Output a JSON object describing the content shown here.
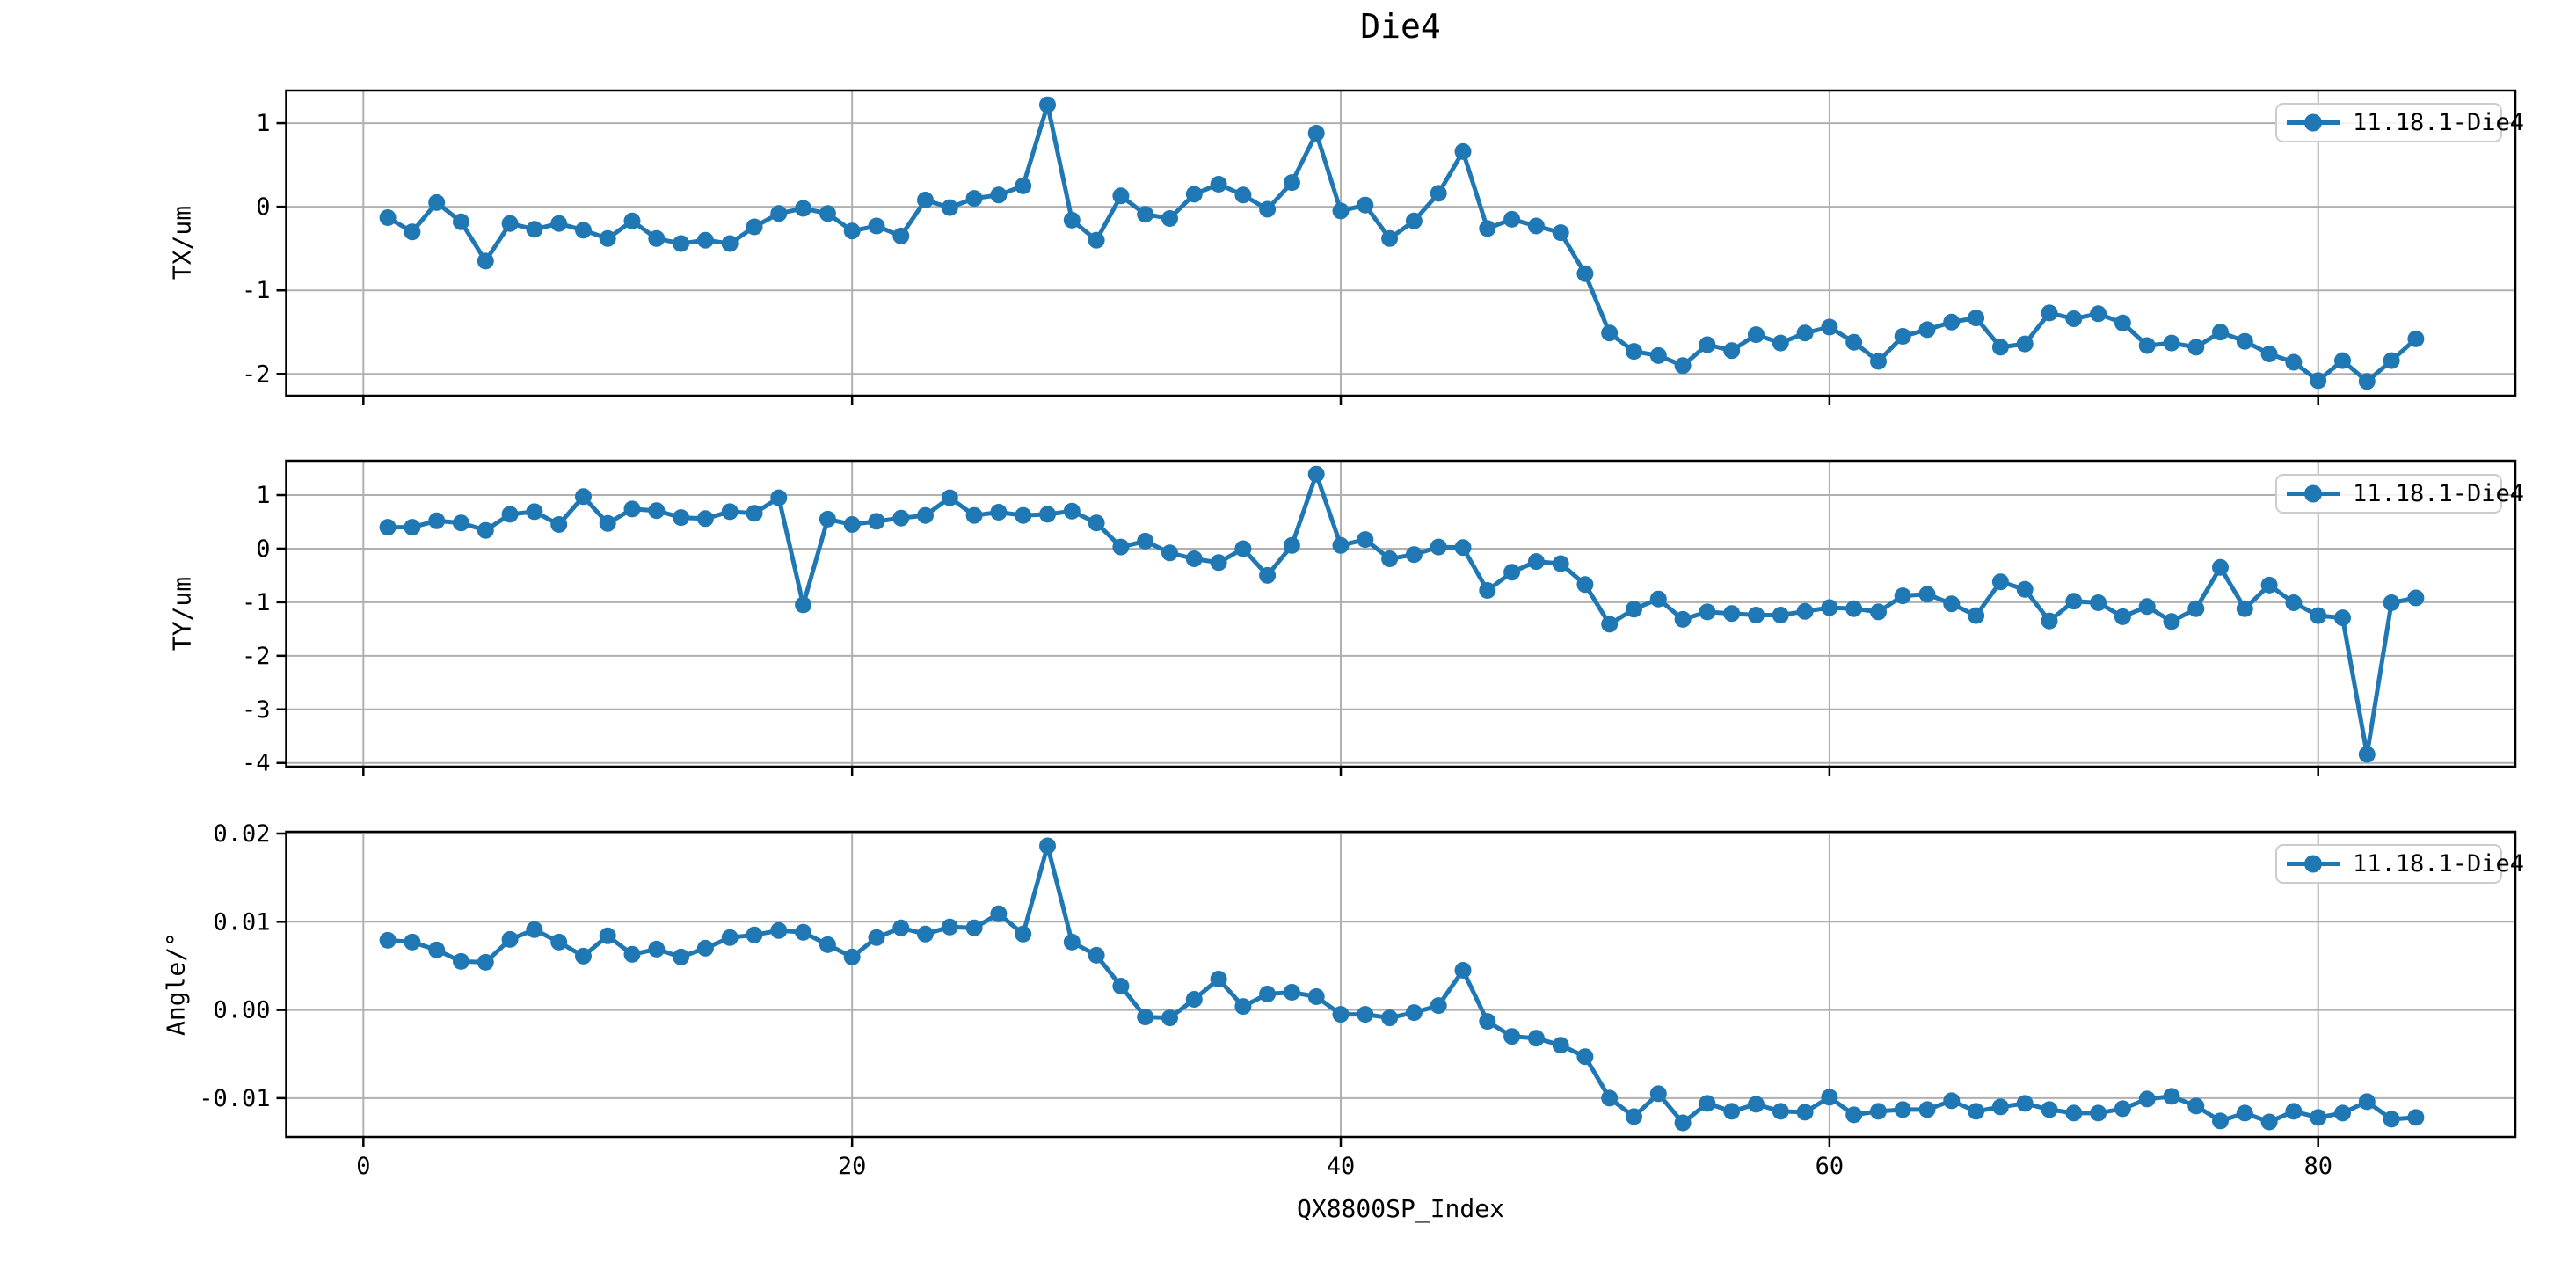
{
  "figure": {
    "title": "Die4",
    "xlabel": "QX8800SP_Index",
    "series_label": "11.18.1-Die4",
    "line_color": "#1f77b4",
    "grid_color": "#b0b0b0",
    "spine_color": "#000000",
    "background": "#ffffff",
    "legend_position": "upper right",
    "grid": "on"
  },
  "chart_data": [
    {
      "type": "line",
      "id": "tx",
      "title": "Die4",
      "ylabel": "TX/um",
      "legend": [
        "11.18.1-Die4"
      ],
      "marker": "circle",
      "grid": true,
      "legend_position": "upper right",
      "xlim": [
        -3.16,
        88.07
      ],
      "ylim": [
        -2.26,
        1.39
      ],
      "xticks": [
        0,
        20,
        40,
        60,
        80
      ],
      "xtick_labels": [
        "0",
        "20",
        "40",
        "60",
        "80"
      ],
      "show_xtick_labels": false,
      "yticks": [
        1,
        0,
        -1,
        -2
      ],
      "ytick_labels": [
        "1",
        "0",
        "-1",
        "-2"
      ],
      "x": [
        1,
        2,
        3,
        4,
        5,
        6,
        7,
        8,
        9,
        10,
        11,
        12,
        13,
        14,
        15,
        16,
        17,
        18,
        19,
        20,
        21,
        22,
        23,
        24,
        25,
        26,
        27,
        28,
        29,
        30,
        31,
        32,
        33,
        34,
        35,
        36,
        37,
        38,
        39,
        40,
        41,
        42,
        43,
        44,
        45,
        46,
        47,
        48,
        49,
        50,
        51,
        52,
        53,
        54,
        55,
        56,
        57,
        58,
        59,
        60,
        61,
        62,
        63,
        64,
        65,
        66,
        67,
        68,
        69,
        70,
        71,
        72,
        73,
        74,
        75,
        76,
        77,
        78,
        79,
        80,
        81,
        82,
        83,
        84
      ],
      "values": [
        -0.13,
        -0.3,
        0.05,
        -0.18,
        -0.65,
        -0.2,
        -0.27,
        -0.2,
        -0.28,
        -0.38,
        -0.17,
        -0.38,
        -0.44,
        -0.4,
        -0.44,
        -0.24,
        -0.08,
        -0.02,
        -0.08,
        -0.29,
        -0.23,
        -0.35,
        0.08,
        -0.01,
        0.1,
        0.14,
        0.25,
        1.22,
        -0.16,
        -0.4,
        0.13,
        -0.09,
        -0.14,
        0.15,
        0.27,
        0.14,
        -0.03,
        0.29,
        0.88,
        -0.05,
        0.02,
        -0.38,
        -0.17,
        0.16,
        0.66,
        -0.26,
        -0.15,
        -0.23,
        -0.31,
        -0.8,
        -1.51,
        -1.73,
        -1.78,
        -1.9,
        -1.65,
        -1.72,
        -1.53,
        -1.63,
        -1.51,
        -1.44,
        -1.62,
        -1.85,
        -1.55,
        -1.47,
        -1.38,
        -1.33,
        -1.68,
        -1.64,
        -1.27,
        -1.34,
        -1.28,
        -1.39,
        -1.66,
        -1.63,
        -1.68,
        -1.5,
        -1.61,
        -1.76,
        -1.86,
        -2.08,
        -1.84,
        -2.09,
        -1.84,
        -1.58
      ]
    },
    {
      "type": "line",
      "id": "ty",
      "ylabel": "TY/um",
      "legend": [
        "11.18.1-Die4"
      ],
      "marker": "circle",
      "grid": true,
      "legend_position": "upper right",
      "xlim": [
        -3.16,
        88.07
      ],
      "ylim": [
        -4.07,
        1.64
      ],
      "xticks": [
        0,
        20,
        40,
        60,
        80
      ],
      "xtick_labels": [
        "0",
        "20",
        "40",
        "60",
        "80"
      ],
      "show_xtick_labels": false,
      "yticks": [
        1,
        0,
        -1,
        -2,
        -3,
        -4
      ],
      "ytick_labels": [
        "1",
        "0",
        "-1",
        "-2",
        "-3",
        "-4"
      ],
      "x": [
        1,
        2,
        3,
        4,
        5,
        6,
        7,
        8,
        9,
        10,
        11,
        12,
        13,
        14,
        15,
        16,
        17,
        18,
        19,
        20,
        21,
        22,
        23,
        24,
        25,
        26,
        27,
        28,
        29,
        30,
        31,
        32,
        33,
        34,
        35,
        36,
        37,
        38,
        39,
        40,
        41,
        42,
        43,
        44,
        45,
        46,
        47,
        48,
        49,
        50,
        51,
        52,
        53,
        54,
        55,
        56,
        57,
        58,
        59,
        60,
        61,
        62,
        63,
        64,
        65,
        66,
        67,
        68,
        69,
        70,
        71,
        72,
        73,
        74,
        75,
        76,
        77,
        78,
        79,
        80,
        81,
        82,
        83,
        84
      ],
      "values": [
        0.4,
        0.4,
        0.52,
        0.48,
        0.34,
        0.64,
        0.69,
        0.45,
        0.97,
        0.47,
        0.74,
        0.71,
        0.58,
        0.56,
        0.69,
        0.66,
        0.95,
        -1.05,
        0.55,
        0.45,
        0.51,
        0.57,
        0.62,
        0.95,
        0.62,
        0.68,
        0.62,
        0.64,
        0.7,
        0.48,
        0.03,
        0.14,
        -0.08,
        -0.19,
        -0.26,
        0.0,
        -0.5,
        0.06,
        1.39,
        0.06,
        0.17,
        -0.19,
        -0.11,
        0.03,
        0.02,
        -0.78,
        -0.44,
        -0.24,
        -0.28,
        -0.67,
        -1.41,
        -1.13,
        -0.94,
        -1.32,
        -1.18,
        -1.21,
        -1.24,
        -1.24,
        -1.17,
        -1.1,
        -1.12,
        -1.18,
        -0.88,
        -0.85,
        -1.03,
        -1.25,
        -0.62,
        -0.76,
        -1.35,
        -0.98,
        -1.01,
        -1.27,
        -1.08,
        -1.36,
        -1.12,
        -0.35,
        -1.12,
        -0.68,
        -1.01,
        -1.25,
        -1.29,
        -3.84,
        -1.01,
        -0.92
      ]
    },
    {
      "type": "line",
      "id": "angle",
      "ylabel": "Angle/°",
      "xlabel": "QX8800SP_Index",
      "legend": [
        "11.18.1-Die4"
      ],
      "marker": "circle",
      "grid": true,
      "legend_position": "upper right",
      "xlim": [
        -3.16,
        88.07
      ],
      "ylim": [
        -0.0144,
        0.0202
      ],
      "xticks": [
        0,
        20,
        40,
        60,
        80
      ],
      "xtick_labels": [
        "0",
        "20",
        "40",
        "60",
        "80"
      ],
      "show_xtick_labels": true,
      "yticks": [
        0.02,
        0.01,
        0.0,
        -0.01
      ],
      "ytick_labels": [
        "0.02",
        "0.01",
        "0.00",
        "-0.01"
      ],
      "x": [
        1,
        2,
        3,
        4,
        5,
        6,
        7,
        8,
        9,
        10,
        11,
        12,
        13,
        14,
        15,
        16,
        17,
        18,
        19,
        20,
        21,
        22,
        23,
        24,
        25,
        26,
        27,
        28,
        29,
        30,
        31,
        32,
        33,
        34,
        35,
        36,
        37,
        38,
        39,
        40,
        41,
        42,
        43,
        44,
        45,
        46,
        47,
        48,
        49,
        50,
        51,
        52,
        53,
        54,
        55,
        56,
        57,
        58,
        59,
        60,
        61,
        62,
        63,
        64,
        65,
        66,
        67,
        68,
        69,
        70,
        71,
        72,
        73,
        74,
        75,
        76,
        77,
        78,
        79,
        80,
        81,
        82,
        83,
        84
      ],
      "values": [
        0.0079,
        0.0077,
        0.0068,
        0.0055,
        0.0054,
        0.008,
        0.0091,
        0.0077,
        0.0061,
        0.0084,
        0.0063,
        0.0069,
        0.006,
        0.007,
        0.0082,
        0.0085,
        0.009,
        0.0088,
        0.0074,
        0.006,
        0.0082,
        0.0093,
        0.0086,
        0.0094,
        0.0093,
        0.0109,
        0.0086,
        0.0186,
        0.0077,
        0.0062,
        0.0027,
        -0.0008,
        -0.0009,
        0.0012,
        0.0035,
        0.0004,
        0.0018,
        0.002,
        0.0015,
        -0.0005,
        -0.0005,
        -0.0009,
        -0.0003,
        0.0005,
        0.0045,
        -0.0013,
        -0.003,
        -0.0032,
        -0.004,
        -0.0053,
        -0.01,
        -0.0121,
        -0.0095,
        -0.0128,
        -0.0106,
        -0.0115,
        -0.0107,
        -0.0115,
        -0.0116,
        -0.0099,
        -0.0119,
        -0.0115,
        -0.0113,
        -0.0113,
        -0.0103,
        -0.0115,
        -0.011,
        -0.0106,
        -0.0113,
        -0.0117,
        -0.0117,
        -0.0112,
        -0.0101,
        -0.0098,
        -0.0109,
        -0.0126,
        -0.0117,
        -0.0127,
        -0.0115,
        -0.0122,
        -0.0117,
        -0.0104,
        -0.0124,
        -0.0122
      ]
    }
  ]
}
